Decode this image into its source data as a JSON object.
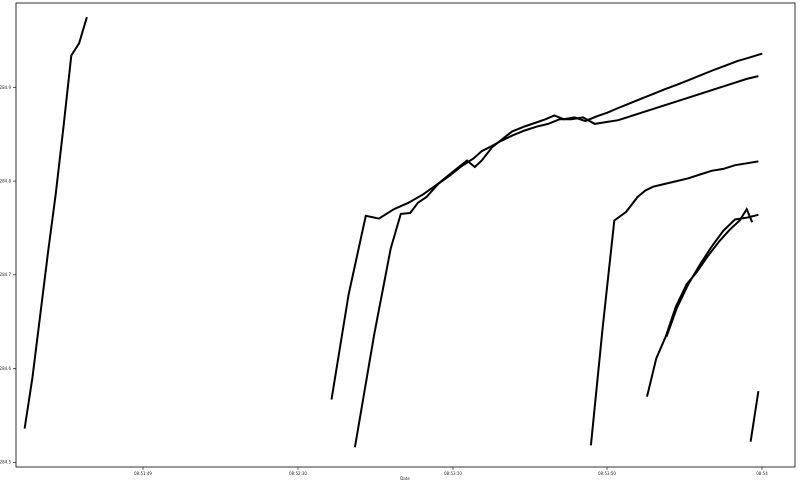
{
  "chart_data": {
    "type": "line",
    "title": "",
    "xlabel": "Date",
    "ylabel": "",
    "grid": false,
    "legend": "none",
    "line_color": "#000000",
    "x_ticks": [
      "08:51:49",
      "08:52:30",
      "08:53:10",
      "08:53:50",
      "08:54"
    ],
    "y_ticks": [
      "284.5",
      "284.6",
      "284.7",
      "284.8",
      "284.9"
    ],
    "xlim": [
      0,
      100
    ],
    "ylim": [
      284.495,
      284.99
    ],
    "series": [
      {
        "x": [
          1.1,
          2.1,
          3.1,
          4.1,
          5.1,
          6.1,
          7.1,
          8.1,
          9.1
        ],
        "y": [
          284.536,
          284.59,
          284.656,
          284.723,
          284.786,
          284.858,
          284.934,
          284.947,
          284.975
        ]
      },
      {
        "x": [
          40.5,
          42.7,
          44.9,
          46.6,
          48.5,
          50.4,
          52.3,
          54.3,
          56.1,
          57.9,
          58.9,
          59.8,
          61.1,
          62.3,
          63.7,
          65.2,
          66.6,
          68.0,
          69.1,
          70.3,
          71.7,
          73.1,
          74.5,
          75.9,
          77.3,
          78.8,
          80.3,
          81.8,
          83.3,
          84.9,
          86.4,
          87.9,
          89.4,
          91.0,
          92.6,
          94.2,
          95.8
        ],
        "y": [
          284.567,
          284.679,
          284.763,
          284.76,
          284.77,
          284.777,
          284.786,
          284.798,
          284.81,
          284.822,
          284.815,
          284.822,
          284.836,
          284.844,
          284.853,
          284.858,
          284.862,
          284.866,
          284.87,
          284.866,
          284.868,
          284.864,
          284.869,
          284.873,
          284.878,
          284.883,
          284.888,
          284.893,
          284.898,
          284.903,
          284.908,
          284.913,
          284.918,
          284.923,
          284.928,
          284.932,
          284.936
        ]
      },
      {
        "x": [
          43.5,
          46.0,
          48.1,
          49.4,
          50.6,
          51.6,
          52.7,
          54.2,
          55.7,
          57.2,
          58.7,
          59.8,
          61.0,
          62.3,
          63.8,
          65.3,
          66.8,
          68.3,
          69.8,
          71.3,
          72.8,
          74.3,
          75.8,
          77.3,
          78.8,
          80.3,
          81.8,
          83.3,
          84.8,
          86.3,
          87.8,
          89.3,
          90.8,
          92.3,
          93.8,
          95.3
        ],
        "y": [
          284.516,
          284.637,
          284.728,
          284.765,
          284.766,
          284.777,
          284.783,
          284.797,
          284.806,
          284.816,
          284.824,
          284.832,
          284.837,
          284.843,
          284.849,
          284.854,
          284.858,
          284.861,
          284.866,
          284.866,
          284.868,
          284.861,
          284.863,
          284.865,
          284.869,
          284.873,
          284.877,
          284.881,
          284.885,
          284.889,
          284.893,
          284.897,
          284.901,
          284.905,
          284.909,
          284.912
        ]
      },
      {
        "x": [
          73.8,
          75.3,
          76.8,
          78.3,
          79.8,
          80.8,
          81.8,
          83.3,
          84.8,
          86.3,
          87.8,
          89.3,
          90.8,
          92.3,
          93.8,
          95.3
        ],
        "y": [
          284.518,
          284.643,
          284.758,
          284.767,
          284.783,
          284.79,
          284.794,
          284.797,
          284.8,
          284.803,
          284.807,
          284.811,
          284.813,
          284.817,
          284.819,
          284.821
        ]
      },
      {
        "x": [
          81.0,
          82.2,
          83.4,
          84.7,
          86.1,
          87.4,
          88.8,
          90.2,
          91.6,
          92.9,
          93.8,
          94.5
        ],
        "y": [
          284.57,
          284.611,
          284.634,
          284.666,
          284.69,
          284.703,
          284.72,
          284.735,
          284.748,
          284.758,
          284.77,
          284.756
        ]
      },
      {
        "x": [
          83.5,
          84.8,
          86.3,
          87.8,
          89.3,
          90.8,
          92.3,
          93.8,
          95.3
        ],
        "y": [
          284.634,
          284.664,
          284.69,
          284.711,
          284.73,
          284.747,
          284.759,
          284.761,
          284.764
        ]
      },
      {
        "x": [
          94.3,
          95.3
        ],
        "y": [
          284.522,
          284.576
        ]
      }
    ]
  }
}
